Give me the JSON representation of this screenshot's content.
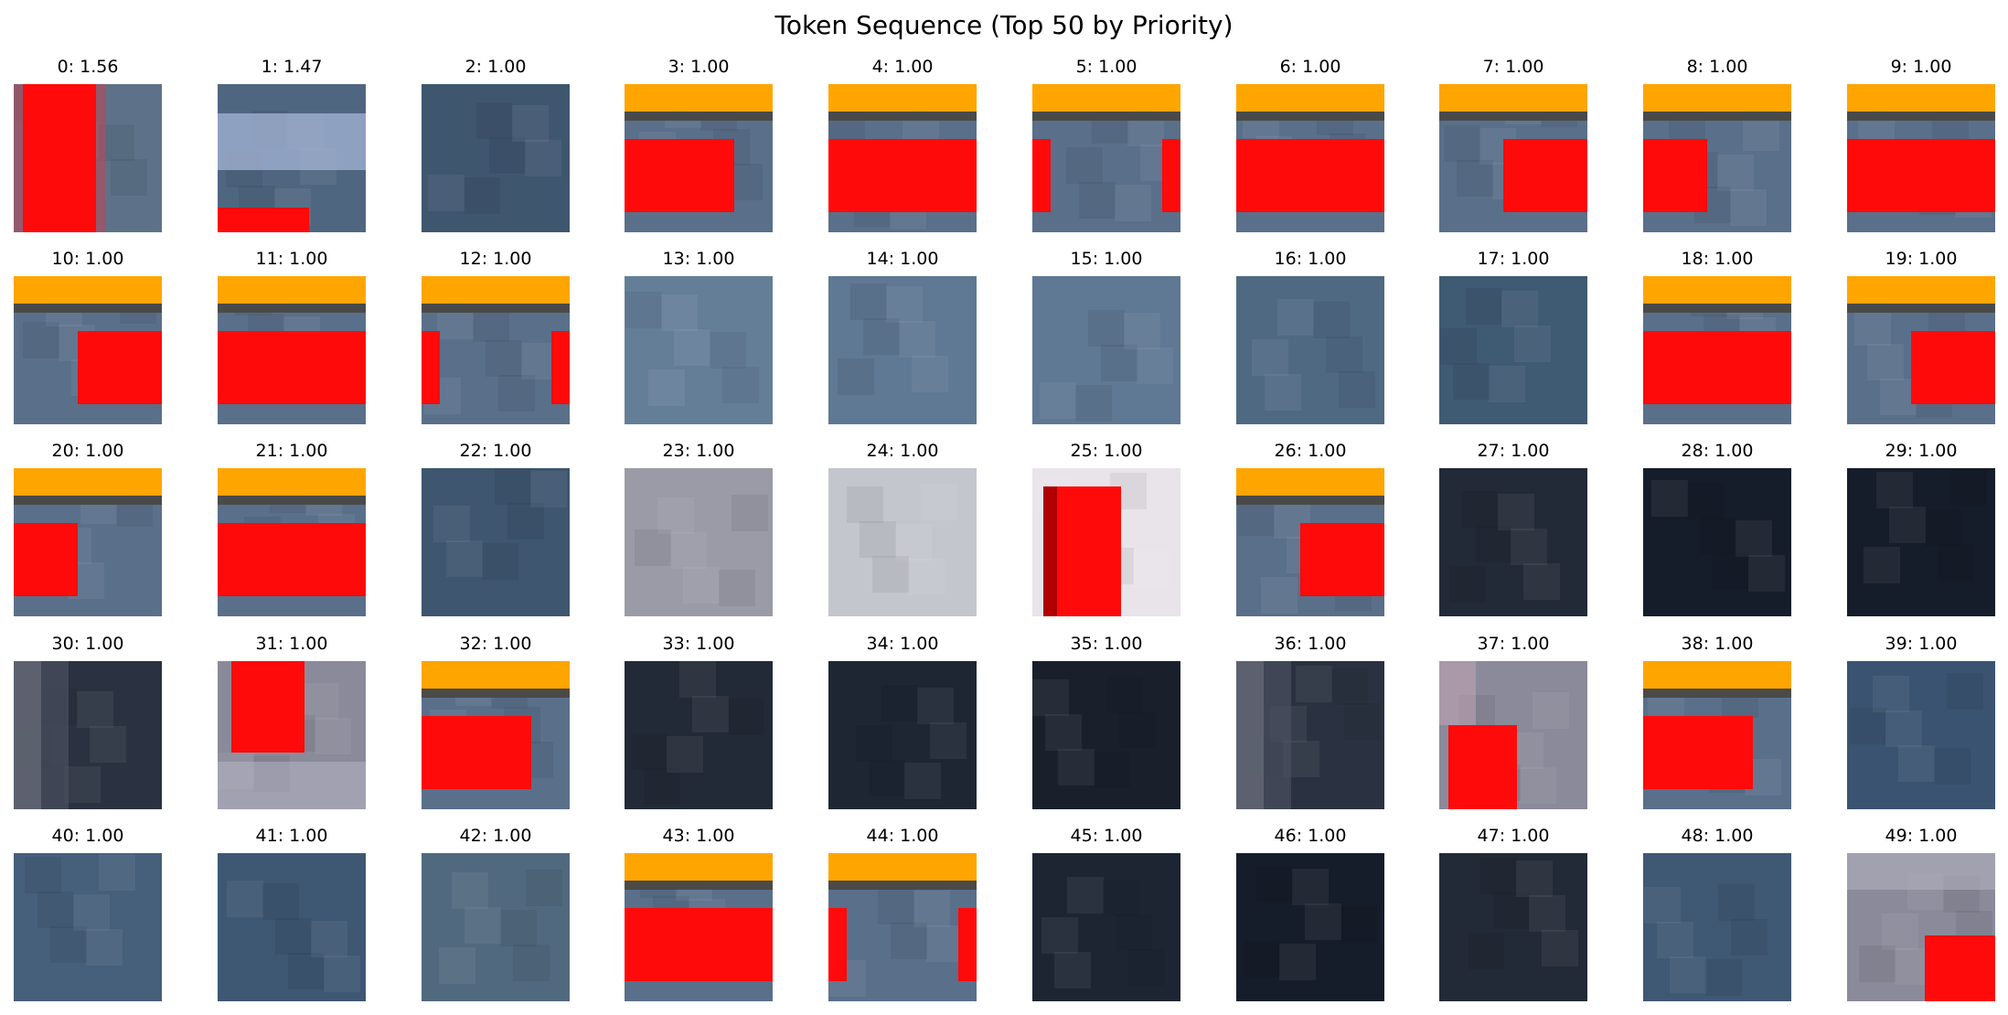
{
  "title": "Token Sequence (Top 50 by Priority)",
  "chart_data": {
    "type": "image-grid",
    "title": "Token Sequence (Top 50 by Priority)",
    "tokens": [
      {
        "label": "0: 1.56",
        "index": 0,
        "priority": 1.56,
        "pattern": "vbar",
        "bg": "#5d7288"
      },
      {
        "label": "1: 1.47",
        "index": 1,
        "priority": 1.47,
        "pattern": "light-band-red-bottom",
        "bg": "#4f6680"
      },
      {
        "label": "2: 1.00",
        "index": 2,
        "priority": 1.0,
        "pattern": "plain",
        "bg": "#3f566f"
      },
      {
        "label": "3: 1.00",
        "index": 3,
        "priority": 1.0,
        "pattern": "banner-red-left",
        "bg": "#5a6f8a"
      },
      {
        "label": "4: 1.00",
        "index": 4,
        "priority": 1.0,
        "pattern": "banner-red-full",
        "bg": "#5a6f8a"
      },
      {
        "label": "5: 1.00",
        "index": 5,
        "priority": 1.0,
        "pattern": "banner-red-edges",
        "bg": "#5a6f8a"
      },
      {
        "label": "6: 1.00",
        "index": 6,
        "priority": 1.0,
        "pattern": "banner-red-full",
        "bg": "#5a6f8a"
      },
      {
        "label": "7: 1.00",
        "index": 7,
        "priority": 1.0,
        "pattern": "banner-red-right",
        "bg": "#5a6f8a"
      },
      {
        "label": "8: 1.00",
        "index": 8,
        "priority": 1.0,
        "pattern": "banner-red-leftsmall",
        "bg": "#5a6f8a"
      },
      {
        "label": "9: 1.00",
        "index": 9,
        "priority": 1.0,
        "pattern": "banner-red-full",
        "bg": "#5a6f8a"
      },
      {
        "label": "10: 1.00",
        "index": 10,
        "priority": 1.0,
        "pattern": "banner-red-right",
        "bg": "#5a6f8a"
      },
      {
        "label": "11: 1.00",
        "index": 11,
        "priority": 1.0,
        "pattern": "banner-red-full",
        "bg": "#5a6f8a"
      },
      {
        "label": "12: 1.00",
        "index": 12,
        "priority": 1.0,
        "pattern": "banner-red-edges",
        "bg": "#5a6f8a"
      },
      {
        "label": "13: 1.00",
        "index": 13,
        "priority": 1.0,
        "pattern": "plain",
        "bg": "#647e98"
      },
      {
        "label": "14: 1.00",
        "index": 14,
        "priority": 1.0,
        "pattern": "plain",
        "bg": "#5f7893"
      },
      {
        "label": "15: 1.00",
        "index": 15,
        "priority": 1.0,
        "pattern": "plain",
        "bg": "#5f7893"
      },
      {
        "label": "16: 1.00",
        "index": 16,
        "priority": 1.0,
        "pattern": "plain",
        "bg": "#4f6983"
      },
      {
        "label": "17: 1.00",
        "index": 17,
        "priority": 1.0,
        "pattern": "plain",
        "bg": "#3f5a73"
      },
      {
        "label": "18: 1.00",
        "index": 18,
        "priority": 1.0,
        "pattern": "banner-red-full",
        "bg": "#5a6f8a"
      },
      {
        "label": "19: 1.00",
        "index": 19,
        "priority": 1.0,
        "pattern": "banner-red-right",
        "bg": "#5a6f8a"
      },
      {
        "label": "20: 1.00",
        "index": 20,
        "priority": 1.0,
        "pattern": "banner-red-leftsmall",
        "bg": "#5a6f8a"
      },
      {
        "label": "21: 1.00",
        "index": 21,
        "priority": 1.0,
        "pattern": "banner-red-full",
        "bg": "#5a6f8a"
      },
      {
        "label": "22: 1.00",
        "index": 22,
        "priority": 1.0,
        "pattern": "plain",
        "bg": "#3e566f"
      },
      {
        "label": "23: 1.00",
        "index": 23,
        "priority": 1.0,
        "pattern": "plain",
        "bg": "#9a9ba6"
      },
      {
        "label": "24: 1.00",
        "index": 24,
        "priority": 1.0,
        "pattern": "plain",
        "bg": "#c4c6ce"
      },
      {
        "label": "25: 1.00",
        "index": 25,
        "priority": 1.0,
        "pattern": "vbar-light",
        "bg": "#e8e4ea"
      },
      {
        "label": "26: 1.00",
        "index": 26,
        "priority": 1.0,
        "pattern": "banner-red-right",
        "bg": "#5a6f8a"
      },
      {
        "label": "27: 1.00",
        "index": 27,
        "priority": 1.0,
        "pattern": "plain",
        "bg": "#222a37"
      },
      {
        "label": "28: 1.00",
        "index": 28,
        "priority": 1.0,
        "pattern": "plain",
        "bg": "#161d2a"
      },
      {
        "label": "29: 1.00",
        "index": 29,
        "priority": 1.0,
        "pattern": "plain",
        "bg": "#161d2a"
      },
      {
        "label": "30: 1.00",
        "index": 30,
        "priority": 1.0,
        "pattern": "gradient-left",
        "bg": "#2a3140"
      },
      {
        "label": "31: 1.00",
        "index": 31,
        "priority": 1.0,
        "pattern": "vbar-top",
        "bg": "#8a8a9a"
      },
      {
        "label": "32: 1.00",
        "index": 32,
        "priority": 1.0,
        "pattern": "banner-red-left",
        "bg": "#5a6f8a"
      },
      {
        "label": "33: 1.00",
        "index": 33,
        "priority": 1.0,
        "pattern": "plain",
        "bg": "#222a37"
      },
      {
        "label": "34: 1.00",
        "index": 34,
        "priority": 1.0,
        "pattern": "plain",
        "bg": "#1e2633"
      },
      {
        "label": "35: 1.00",
        "index": 35,
        "priority": 1.0,
        "pattern": "plain",
        "bg": "#19202c"
      },
      {
        "label": "36: 1.00",
        "index": 36,
        "priority": 1.0,
        "pattern": "gradient-left",
        "bg": "#2a3140"
      },
      {
        "label": "37: 1.00",
        "index": 37,
        "priority": 1.0,
        "pattern": "vbar-bottom",
        "bg": "#8a8a9a"
      },
      {
        "label": "38: 1.00",
        "index": 38,
        "priority": 1.0,
        "pattern": "banner-red-left",
        "bg": "#5a6f8a"
      },
      {
        "label": "39: 1.00",
        "index": 39,
        "priority": 1.0,
        "pattern": "plain",
        "bg": "#3a5370"
      },
      {
        "label": "40: 1.00",
        "index": 40,
        "priority": 1.0,
        "pattern": "plain",
        "bg": "#465f7a"
      },
      {
        "label": "41: 1.00",
        "index": 41,
        "priority": 1.0,
        "pattern": "plain",
        "bg": "#3e5773"
      },
      {
        "label": "42: 1.00",
        "index": 42,
        "priority": 1.0,
        "pattern": "plain",
        "bg": "#50697f"
      },
      {
        "label": "43: 1.00",
        "index": 43,
        "priority": 1.0,
        "pattern": "banner-red-full",
        "bg": "#5a6f8a"
      },
      {
        "label": "44: 1.00",
        "index": 44,
        "priority": 1.0,
        "pattern": "banner-red-edges",
        "bg": "#5a6f8a"
      },
      {
        "label": "45: 1.00",
        "index": 45,
        "priority": 1.0,
        "pattern": "plain",
        "bg": "#1d2533"
      },
      {
        "label": "46: 1.00",
        "index": 46,
        "priority": 1.0,
        "pattern": "plain",
        "bg": "#161d2a"
      },
      {
        "label": "47: 1.00",
        "index": 47,
        "priority": 1.0,
        "pattern": "plain",
        "bg": "#222a37"
      },
      {
        "label": "48: 1.00",
        "index": 48,
        "priority": 1.0,
        "pattern": "plain",
        "bg": "#3f5873"
      },
      {
        "label": "49: 1.00",
        "index": 49,
        "priority": 1.0,
        "pattern": "corner-red",
        "bg": "#8a8a9a"
      }
    ]
  }
}
